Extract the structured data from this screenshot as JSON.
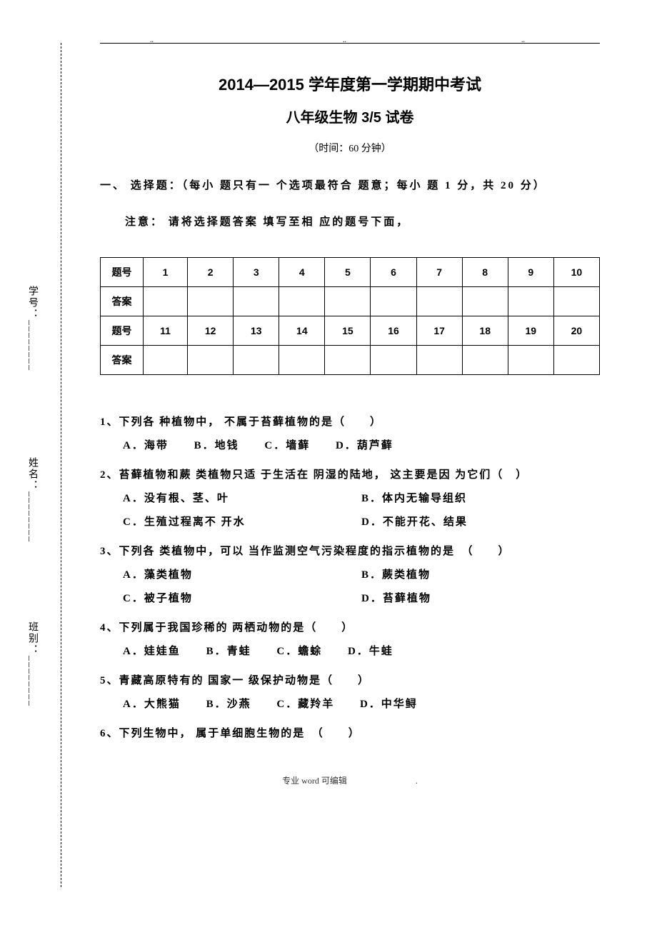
{
  "binding": {
    "xuehao": "学号：",
    "xingming": "姓名：",
    "banbie": "班别："
  },
  "title": {
    "main": "2014—2015 学年度第一学期期中考试",
    "sub": "八年级生物 3/5 试卷",
    "time": "（时间：60 分钟）"
  },
  "section1": {
    "header": "一、 选择题：（每小 题只有一 个选项最符合 题意；每小 题 1 分，共  20 分）",
    "notice": "注意： 请将选择题答案 填写至相 应的题号下面，"
  },
  "table": {
    "row1_label": "题号",
    "row2_label": "答案",
    "row3_label": "题号",
    "row4_label": "答案",
    "nums1": [
      "1",
      "2",
      "3",
      "4",
      "5",
      "6",
      "7",
      "8",
      "9",
      "10"
    ],
    "nums2": [
      "11",
      "12",
      "13",
      "14",
      "15",
      "16",
      "17",
      "18",
      "19",
      "20"
    ]
  },
  "questions": {
    "q1": {
      "text": "1、下列各 种植物中， 不属于苔藓植物的是（　　）",
      "opts": [
        "A．海带",
        "B．地钱",
        "C．墙藓",
        "D．葫芦藓"
      ]
    },
    "q2": {
      "text": "2、苔藓植物和蕨 类植物只适 于生活在 阴湿的陆地， 这主要是因 为它们（　）",
      "optA": "A．没有根、茎、叶",
      "optB": "B．体内无输导组织",
      "optC": "C．生殖过程离不 开水",
      "optD": "D．不能开花、结果"
    },
    "q3": {
      "text": "3、下列各 类植物中，可以 当作监测空气污染程度的指示植物的是　（　　）",
      "optA": "A．藻类植物",
      "optB": "B．蕨类植物",
      "optC": "C．被子植物",
      "optD": "D．苔藓植物"
    },
    "q4": {
      "text": "4、下列属于我国珍稀的 两栖动物的是（　　）",
      "opts": [
        "A．娃娃鱼",
        "B．青蛙",
        "C．蟾蜍",
        "D．牛蛙"
      ]
    },
    "q5": {
      "text": "5、青藏高原特有的 国家一 级保护动物是（　　）",
      "opts": [
        "A．大熊猫",
        "B．沙燕",
        "C．藏羚羊",
        "D．中华鲟"
      ]
    },
    "q6": {
      "text": "6、下列生物中， 属于单细胞生物的是　（　　）"
    }
  },
  "footer": "专业 word 可编辑　　　　　　　　."
}
